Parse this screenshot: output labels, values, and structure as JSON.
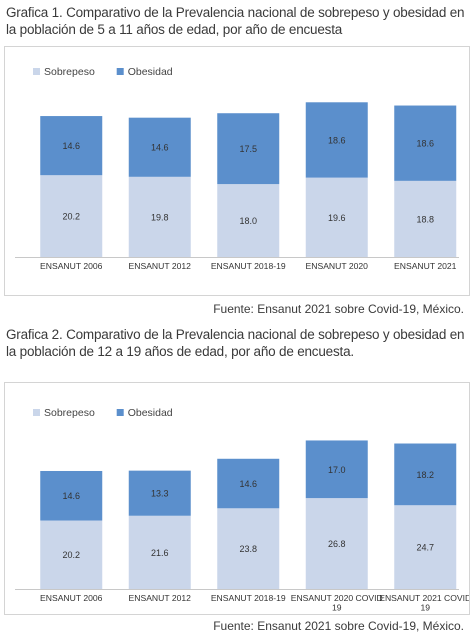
{
  "figure1": {
    "caption": "Grafica 1. Comparativo de la Prevalencia nacional de sobrepeso y obesidad en la población de 5 a 11 años de edad, por año de encuesta",
    "source": "Fuente: Ensanut 2021 sobre Covid-19, México."
  },
  "figure2": {
    "caption": "Grafica 2. Comparativo de la Prevalencia nacional de sobrepeso y obesidad en la población de 12 a 19 años de edad, por año de encuesta.",
    "source": "Fuente: Ensanut 2021 sobre Covid-19, México."
  },
  "chart_data": [
    {
      "type": "bar",
      "stacked": true,
      "legend_position": "top-left",
      "categories": [
        "ENSANUT 2006",
        "ENSANUT 2012",
        "ENSANUT 2018-19",
        "ENSANUT 2020",
        "ENSANUT 2021"
      ],
      "series": [
        {
          "name": "Sobrepeso",
          "values": [
            20.2,
            19.8,
            18.0,
            19.6,
            18.8
          ],
          "labels": [
            "20.2",
            "19.8",
            "18.0",
            "19.6",
            "18.8"
          ],
          "color": "#cad6ea"
        },
        {
          "name": "Obesidad",
          "values": [
            14.6,
            14.6,
            17.5,
            18.6,
            18.6
          ],
          "labels": [
            "14.6",
            "14.6",
            "17.5",
            "18.6",
            "18.6"
          ],
          "color": "#5b8fcc"
        }
      ],
      "ylim": [
        0,
        40
      ],
      "grid": false
    },
    {
      "type": "bar",
      "stacked": true,
      "legend_position": "top-left",
      "categories": [
        "ENSANUT 2006",
        "ENSANUT 2012",
        "ENSANUT 2018-19",
        "ENSANUT 2020 COVID 19",
        "ENSANUT 2021 COVID 19"
      ],
      "series": [
        {
          "name": "Sobrepeso",
          "values": [
            20.2,
            21.6,
            23.8,
            26.8,
            24.7
          ],
          "labels": [
            "20.2",
            "21.6",
            "23.8",
            "26.8",
            "24.7"
          ],
          "color": "#cad6ea"
        },
        {
          "name": "Obesidad",
          "values": [
            14.6,
            13.3,
            14.6,
            17.0,
            18.2
          ],
          "labels": [
            "14.6",
            "13.3",
            "14.6",
            "17.0",
            "18.2"
          ],
          "color": "#5b8fcc"
        }
      ],
      "ylim": [
        0,
        46
      ],
      "grid": false
    }
  ]
}
